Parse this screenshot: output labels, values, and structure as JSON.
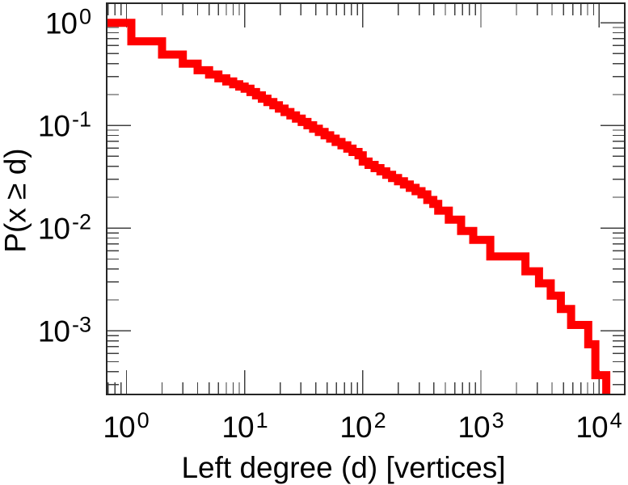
{
  "figure": {
    "background": "#ffffff",
    "text_color": "#000000",
    "axis_border_color": "#262626",
    "tick_color": "#404040"
  },
  "axes": {
    "x_title": "Left degree (d) [vertices]",
    "y_title": "P(x ≥ d)"
  },
  "chart_data": {
    "type": "line",
    "style": "step-ccdf",
    "step_mode": "vertical-then-horizontal",
    "title": "",
    "xlabel": "Left degree (d) [vertices]",
    "ylabel": "P(x ≥ d)",
    "xscale": "log",
    "yscale": "log",
    "grid": false,
    "legend": null,
    "xlim": [
      0.68,
      16500
    ],
    "ylim": [
      0.00024,
      1.55
    ],
    "x_major_ticks": [
      1,
      10,
      100,
      1000,
      10000
    ],
    "x_tick_labels": [
      {
        "base": "10",
        "exp": "0"
      },
      {
        "base": "10",
        "exp": "1"
      },
      {
        "base": "10",
        "exp": "2"
      },
      {
        "base": "10",
        "exp": "3"
      },
      {
        "base": "10",
        "exp": "4"
      }
    ],
    "y_major_ticks": [
      1,
      0.1,
      0.01,
      0.001
    ],
    "y_tick_labels": [
      {
        "base": "10",
        "exp": "0"
      },
      {
        "base": "10",
        "exp": "-1"
      },
      {
        "base": "10",
        "exp": "-2"
      },
      {
        "base": "10",
        "exp": "-3"
      }
    ],
    "line_color": "#ff0000",
    "line_width": 10,
    "series": [
      {
        "name": "left-degree-ccdf",
        "points": [
          [
            0.68,
            1.0
          ],
          [
            1.1,
            0.66
          ],
          [
            2,
            0.49
          ],
          [
            3,
            0.4
          ],
          [
            4,
            0.345
          ],
          [
            5,
            0.313
          ],
          [
            6,
            0.288
          ],
          [
            7,
            0.268
          ],
          [
            8,
            0.252
          ],
          [
            9,
            0.239
          ],
          [
            10,
            0.228
          ],
          [
            11.2,
            0.2116
          ],
          [
            12.5,
            0.1964
          ],
          [
            14,
            0.1823
          ],
          [
            15.6,
            0.1692
          ],
          [
            17.5,
            0.157
          ],
          [
            19.5,
            0.1457
          ],
          [
            21.8,
            0.1352
          ],
          [
            24.4,
            0.1255
          ],
          [
            27.2,
            0.1165
          ],
          [
            30.4,
            0.1081
          ],
          [
            34,
            0.1003
          ],
          [
            38,
            0.0931
          ],
          [
            42.5,
            0.0864
          ],
          [
            47.5,
            0.0802
          ],
          [
            53,
            0.0744
          ],
          [
            59,
            0.0691
          ],
          [
            66,
            0.0641
          ],
          [
            74,
            0.0595
          ],
          [
            82,
            0.0552
          ],
          [
            92,
            0.0512
          ],
          [
            100,
            0.0445
          ],
          [
            112,
            0.0413
          ],
          [
            126,
            0.0384
          ],
          [
            141,
            0.0357
          ],
          [
            158,
            0.0331
          ],
          [
            177,
            0.0308
          ],
          [
            199,
            0.0286
          ],
          [
            223,
            0.0266
          ],
          [
            250,
            0.0247
          ],
          [
            280,
            0.0229
          ],
          [
            314,
            0.0213
          ],
          [
            352,
            0.0188
          ],
          [
            395,
            0.0172
          ],
          [
            435,
            0.0148
          ],
          [
            535,
            0.0121
          ],
          [
            680,
            0.0094
          ],
          [
            860,
            0.0077
          ],
          [
            1200,
            0.0053
          ],
          [
            2380,
            0.0038
          ],
          [
            3100,
            0.0029
          ],
          [
            3900,
            0.0022
          ],
          [
            4750,
            0.00163
          ],
          [
            5800,
            0.00114
          ],
          [
            8100,
            0.00074
          ],
          [
            9300,
            0.00037
          ],
          [
            11500,
            0.00019
          ]
        ]
      }
    ]
  }
}
